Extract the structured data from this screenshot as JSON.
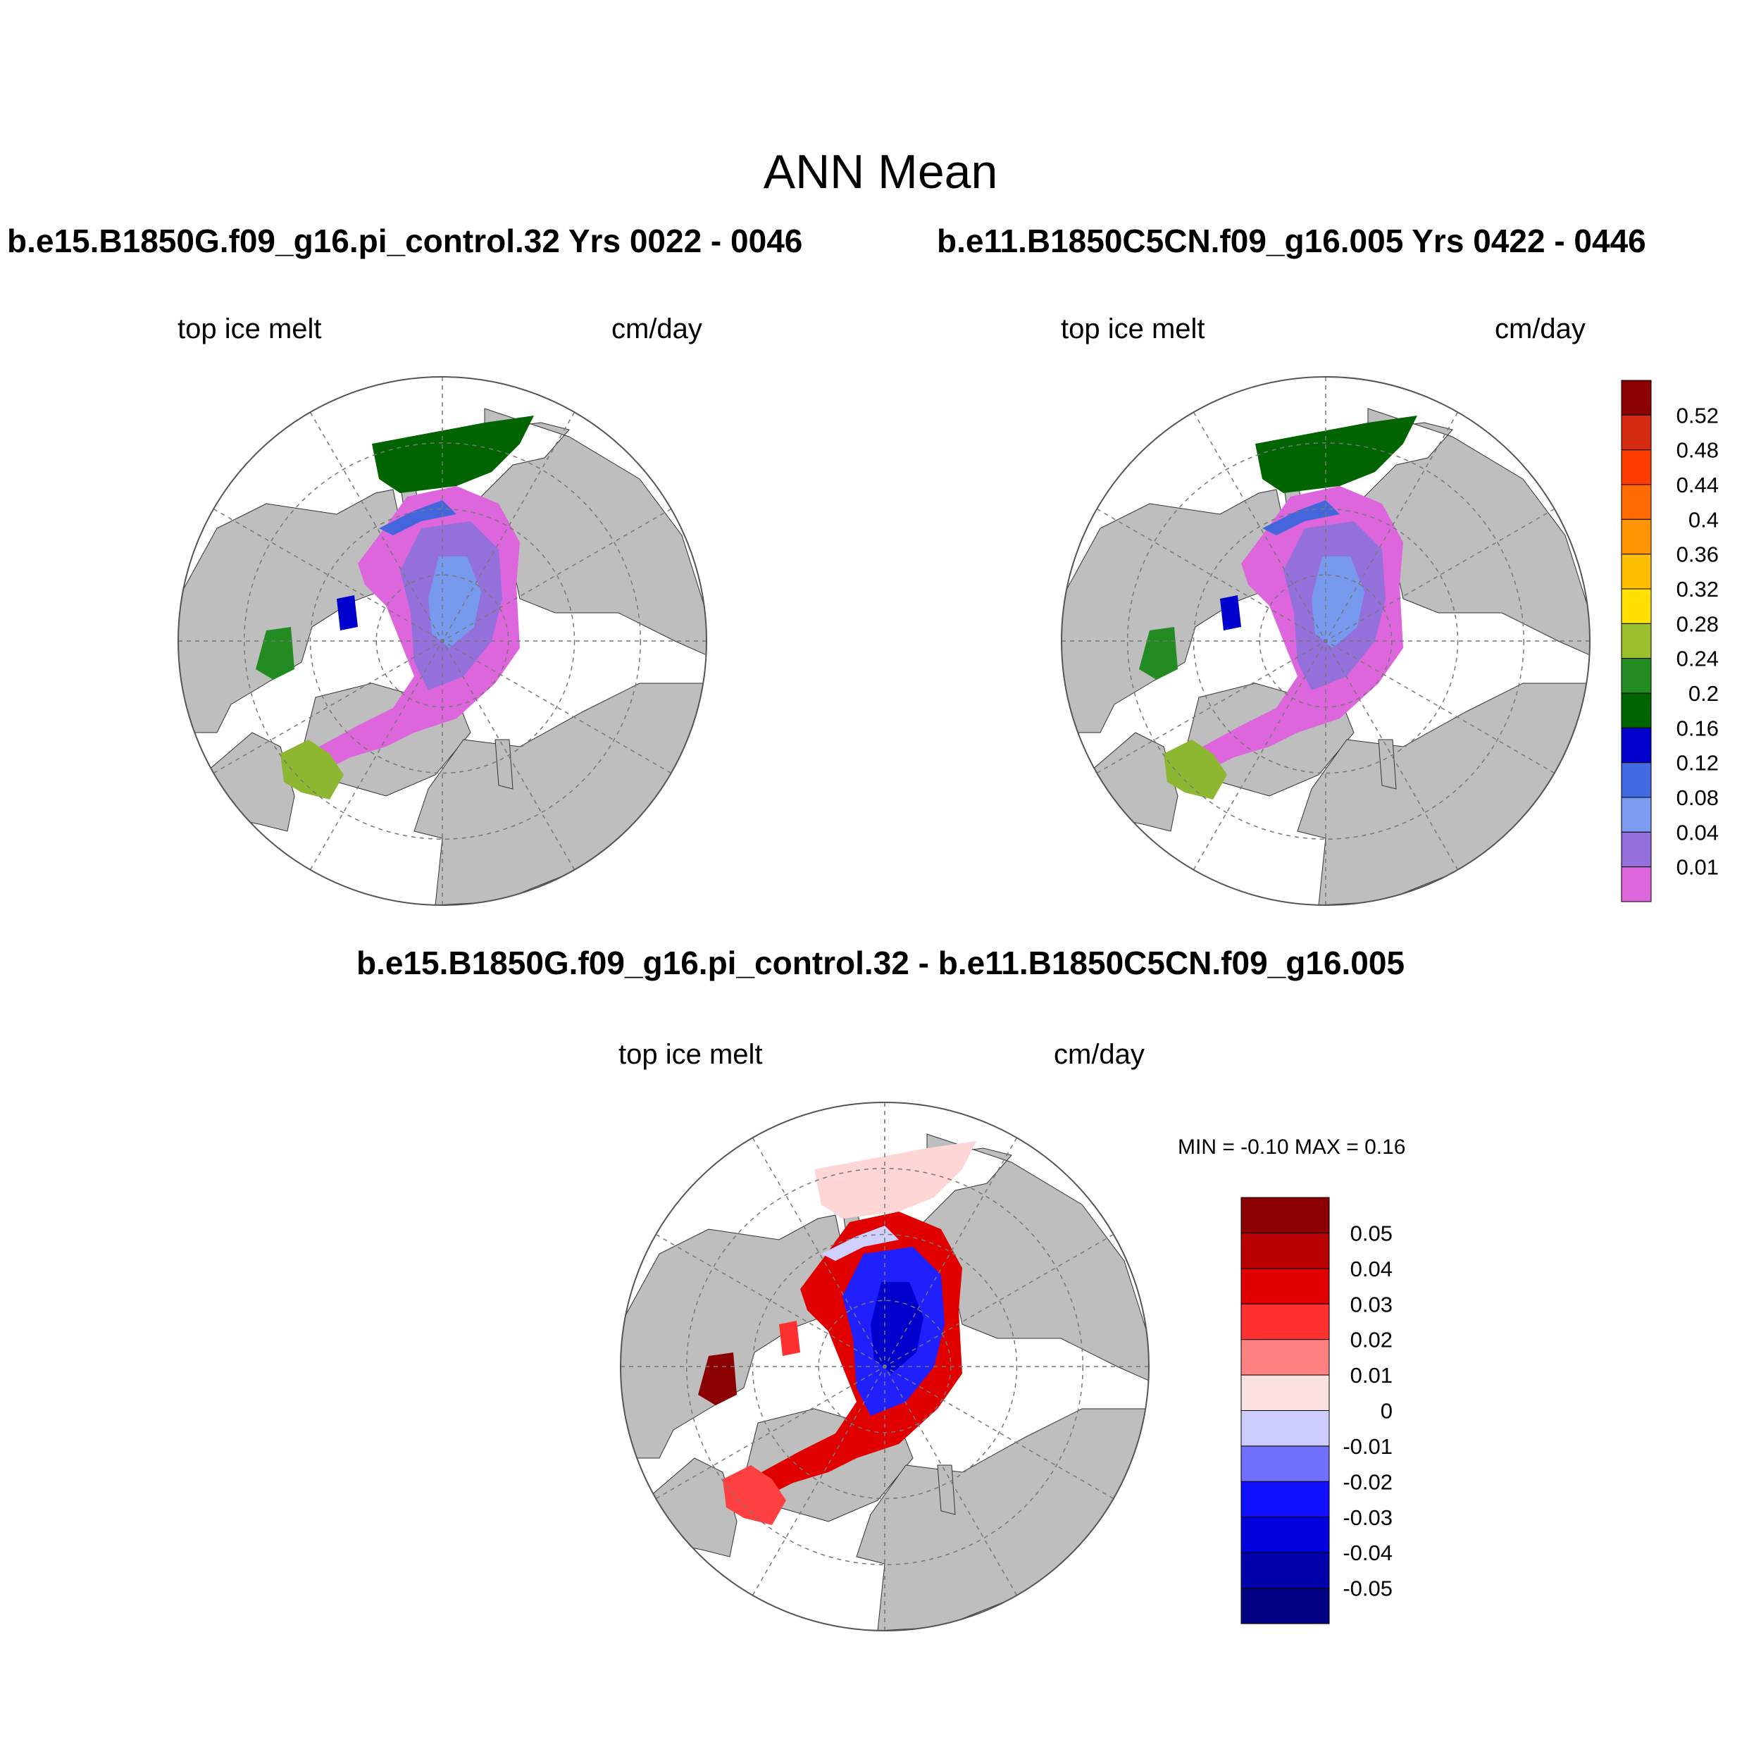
{
  "title": "ANN Mean",
  "panels": [
    {
      "case": "b.e15.B1850G.f09_g16.pi_control.32  Yrs 0022 - 0046",
      "variable": "top ice melt",
      "units": "cm/day",
      "ice_colors": [
        "#dd66dd",
        "#9370db",
        "#7799ee",
        "#4466dd",
        "#0000cc",
        "#006400",
        "#228b22",
        "#8db631",
        "#ffe000"
      ]
    },
    {
      "case": "b.e11.B1850C5CN.f09_g16.005  Yrs 0422 - 0446",
      "variable": "top ice melt",
      "units": "cm/day",
      "ice_colors": [
        "#dd66dd",
        "#9370db",
        "#7799ee",
        "#4466dd",
        "#0000cc",
        "#006400",
        "#228b22",
        "#8db631",
        "#ffe000"
      ]
    }
  ],
  "colorbar_top": {
    "levels": [
      "0.52",
      "0.48",
      "0.44",
      "0.4",
      "0.36",
      "0.32",
      "0.28",
      "0.24",
      "0.2",
      "0.16",
      "0.12",
      "0.08",
      "0.04",
      "0.01"
    ],
    "colors": [
      "#8b0000",
      "#d42a10",
      "#ff3c00",
      "#ff6a00",
      "#ff9300",
      "#ffbe00",
      "#ffe000",
      "#9cbf2e",
      "#228b22",
      "#006400",
      "#0000cd",
      "#4169e1",
      "#7b9cf0",
      "#9370db",
      "#dd66dd"
    ]
  },
  "difference": {
    "title": "b.e15.B1850G.f09_g16.pi_control.32 - b.e11.B1850C5CN.f09_g16.005",
    "variable": "top ice melt",
    "units": "cm/day",
    "min_max": "MIN =  -0.10 MAX =   0.16",
    "colorbar": {
      "levels": [
        "0.05",
        "0.04",
        "0.03",
        "0.02",
        "0.01",
        "0",
        "-0.01",
        "-0.02",
        "-0.03",
        "-0.04",
        "-0.05"
      ],
      "colors": [
        "#8b0000",
        "#b80000",
        "#e00000",
        "#ff3030",
        "#ff8080",
        "#fbe0e0",
        "#ccccff",
        "#7070ff",
        "#1010ff",
        "#0000dd",
        "#0000aa",
        "#000080"
      ]
    }
  },
  "colors": {
    "land": "#bebebe",
    "ocean": "#ffffff",
    "grid": "#777777"
  }
}
